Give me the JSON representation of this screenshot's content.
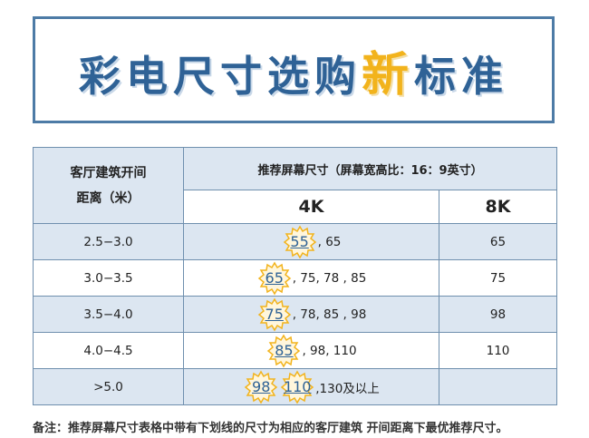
{
  "title": {
    "part1": "彩电尺寸选购",
    "highlight": "新",
    "part2": "标准",
    "accent_color": "#f2b31c",
    "main_color": "#2f6296"
  },
  "table": {
    "header_distance_line1": "客厅建筑开间",
    "header_distance_line2": "距离（米）",
    "header_recommend": "推荐屏幕尺寸（屏幕宽高比：16：9英寸）",
    "header_4k": "4K",
    "header_8k": "8K",
    "rows": [
      {
        "distance": "2.5−3.0",
        "best": [
          "55"
        ],
        "rest": ", 65",
        "k8": "65"
      },
      {
        "distance": "3.0−3.5",
        "best": [
          "65"
        ],
        "rest": ", 75, 78 , 85",
        "k8": "75"
      },
      {
        "distance": "3.5−4.0",
        "best": [
          "75"
        ],
        "rest": ", 78, 85 , 98",
        "k8": "98"
      },
      {
        "distance": "4.0−4.5",
        "best": [
          "85"
        ],
        "rest": ", 98, 110",
        "k8": "110"
      },
      {
        "distance": ">5.0",
        "best": [
          "98",
          "110"
        ],
        "rest": ",130及以上",
        "k8": ""
      }
    ]
  },
  "footnote": "备注：推荐屏幕尺寸表格中带有下划线的尺寸为相应的客厅建筑 开间距离下最优推荐尺寸。"
}
